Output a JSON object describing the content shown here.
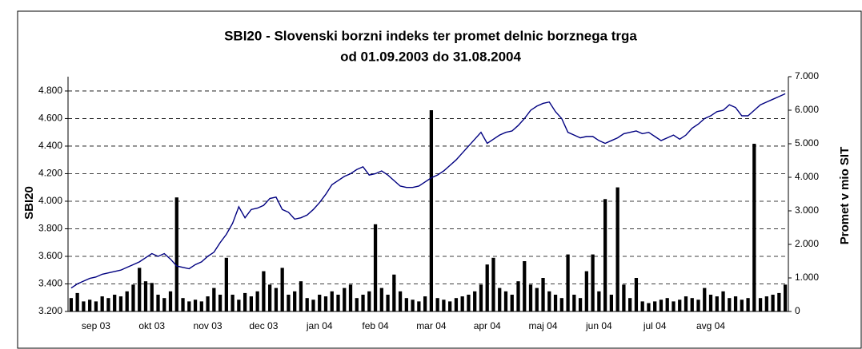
{
  "chart_data": {
    "type": "bar",
    "title": "SBI20 - Slovenski borzni indeks ter promet delnic borznega trga",
    "subtitle": "od 01.09.2003 do 31.08.2004",
    "y_label": "SBI20",
    "y2_label": "Promet v mio SIT",
    "categories": [
      null,
      null,
      null,
      null,
      "sep 03",
      null,
      null,
      null,
      null,
      null,
      null,
      null,
      null,
      "okt 03",
      null,
      null,
      null,
      null,
      null,
      null,
      null,
      null,
      "nov 03",
      null,
      null,
      null,
      null,
      null,
      null,
      null,
      null,
      "dec 03",
      null,
      null,
      null,
      null,
      null,
      null,
      null,
      null,
      "jan 04",
      null,
      null,
      null,
      null,
      null,
      null,
      null,
      null,
      "feb 04",
      null,
      null,
      null,
      null,
      null,
      null,
      null,
      null,
      "mar 04",
      null,
      null,
      null,
      null,
      null,
      null,
      null,
      null,
      "apr 04",
      null,
      null,
      null,
      null,
      null,
      null,
      null,
      null,
      "maj 04",
      null,
      null,
      null,
      null,
      null,
      null,
      null,
      null,
      "jun 04",
      null,
      null,
      null,
      null,
      null,
      null,
      null,
      null,
      "jul 04",
      null,
      null,
      null,
      null,
      null,
      null,
      null,
      null,
      "avg 04",
      null,
      null,
      null,
      null,
      null,
      null,
      null,
      null,
      null,
      null,
      null,
      null
    ],
    "series": [
      {
        "name": "Promet",
        "type": "bar",
        "axis": "y2",
        "color": "#000000",
        "values": [
          400,
          550,
          300,
          350,
          300,
          450,
          400,
          500,
          450,
          600,
          800,
          1300,
          900,
          850,
          500,
          400,
          600,
          3400,
          400,
          300,
          350,
          300,
          450,
          700,
          500,
          1600,
          500,
          350,
          550,
          450,
          600,
          1200,
          800,
          700,
          1300,
          500,
          600,
          900,
          400,
          350,
          500,
          450,
          600,
          500,
          700,
          800,
          400,
          500,
          600,
          2600,
          700,
          500,
          1100,
          600,
          400,
          350,
          300,
          450,
          6000,
          400,
          350,
          300,
          400,
          450,
          500,
          600,
          800,
          1400,
          1600,
          700,
          600,
          500,
          900,
          1500,
          800,
          700,
          1000,
          600,
          500,
          400,
          1700,
          500,
          400,
          1200,
          1700,
          600,
          3350,
          500,
          3700,
          800,
          400,
          1000,
          300,
          250,
          300,
          350,
          400,
          300,
          350,
          450,
          400,
          350,
          700,
          500,
          450,
          600,
          400,
          450,
          350,
          400,
          5000,
          400,
          450,
          500,
          550,
          800
        ]
      },
      {
        "name": "SBI20",
        "type": "line",
        "axis": "y",
        "color": "#000080",
        "values": [
          3370,
          3400,
          3420,
          3440,
          3450,
          3470,
          3480,
          3490,
          3500,
          3520,
          3540,
          3560,
          3590,
          3620,
          3600,
          3620,
          3580,
          3530,
          3520,
          3510,
          3540,
          3560,
          3600,
          3630,
          3700,
          3760,
          3840,
          3960,
          3880,
          3940,
          3950,
          3970,
          4020,
          4030,
          3940,
          3920,
          3870,
          3880,
          3900,
          3940,
          3990,
          4050,
          4120,
          4150,
          4180,
          4200,
          4230,
          4250,
          4190,
          4200,
          4220,
          4190,
          4150,
          4110,
          4100,
          4100,
          4110,
          4140,
          4170,
          4190,
          4220,
          4260,
          4300,
          4350,
          4400,
          4450,
          4500,
          4420,
          4450,
          4480,
          4500,
          4510,
          4550,
          4600,
          4660,
          4690,
          4710,
          4720,
          4650,
          4600,
          4500,
          4480,
          4460,
          4470,
          4470,
          4440,
          4420,
          4440,
          4460,
          4490,
          4500,
          4510,
          4490,
          4500,
          4470,
          4440,
          4460,
          4480,
          4450,
          4480,
          4530,
          4560,
          4600,
          4620,
          4650,
          4660,
          4700,
          4680,
          4620,
          4620,
          4660,
          4700,
          4720,
          4740,
          4760,
          4780
        ]
      }
    ],
    "ylim": [
      3200,
      4904
    ],
    "yticks": [
      {
        "value": 3200,
        "label": "3.200"
      },
      {
        "value": 3400,
        "label": "3.400"
      },
      {
        "value": 3600,
        "label": "3.600"
      },
      {
        "value": 3800,
        "label": "3.800"
      },
      {
        "value": 4000,
        "label": "4.000"
      },
      {
        "value": 4200,
        "label": "4.200"
      },
      {
        "value": 4400,
        "label": "4.400"
      },
      {
        "value": 4600,
        "label": "4.600"
      },
      {
        "value": 4800,
        "label": "4.800"
      }
    ],
    "y2lim": [
      0,
      7000
    ],
    "y2ticks": [
      0,
      {
        "value": 1000,
        "label": "1.000"
      },
      {
        "value": 2000,
        "label": "2.000"
      },
      {
        "value": 3000,
        "label": "3.000"
      },
      {
        "value": 4000,
        "label": "4.000"
      },
      {
        "value": 5000,
        "label": "5.000"
      },
      {
        "value": 6000,
        "label": "6.000"
      },
      {
        "value": 7000,
        "label": "7.000"
      }
    ],
    "grid": true
  }
}
